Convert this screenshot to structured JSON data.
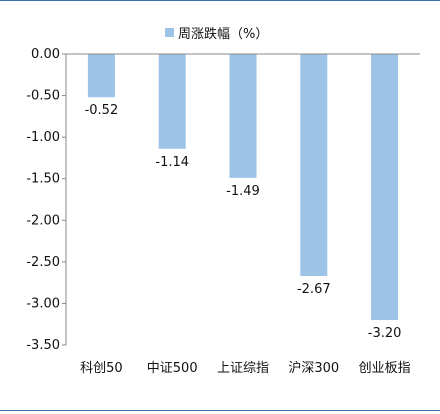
{
  "colors": {
    "bar": "#9dc3e6",
    "rule": "#3a6fb0",
    "axis": "#888888"
  },
  "chart_data": {
    "type": "bar",
    "legend": "周涨跌幅（%）",
    "legend_position": "top-center",
    "categories": [
      "科创50",
      "中证500",
      "上证综指",
      "沪深300",
      "创业板指"
    ],
    "series": [
      {
        "name": "周涨跌幅（%）",
        "values": [
          -0.52,
          -1.14,
          -1.49,
          -2.67,
          -3.2
        ],
        "labels": [
          "-0.52",
          "-1.14",
          "-1.49",
          "-2.67",
          "-3.20"
        ]
      }
    ],
    "ylim": [
      -3.5,
      0
    ],
    "yticks": [
      "0.00",
      "-0.50",
      "-1.00",
      "-1.50",
      "-2.00",
      "-2.50",
      "-3.00",
      "-3.50"
    ],
    "grid": false
  }
}
